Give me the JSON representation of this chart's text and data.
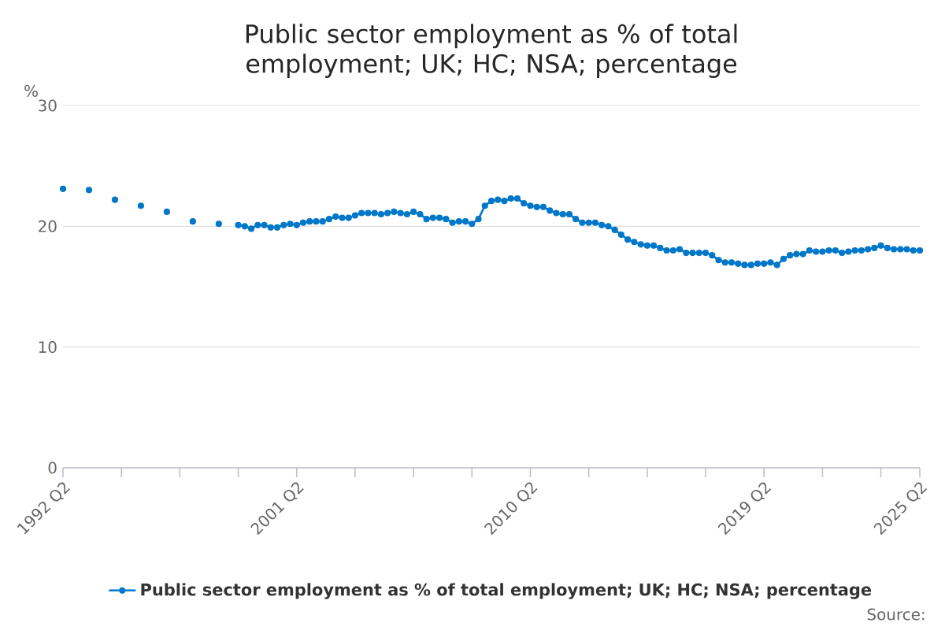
{
  "chart_data": {
    "type": "line",
    "title": "Public sector employment as % of total employment; UK; HC; NSA; percentage",
    "ylabel": "%",
    "categories": [
      "1992 Q2",
      null,
      null,
      null,
      null,
      null,
      null,
      null,
      null,
      null,
      null,
      null,
      null,
      null,
      null,
      null,
      null,
      null,
      null,
      null,
      null,
      null,
      null,
      null,
      null,
      null,
      null,
      null,
      null,
      null,
      null,
      null,
      null,
      null,
      null,
      null,
      "2001 Q2",
      null,
      null,
      null,
      null,
      null,
      null,
      null,
      null,
      null,
      null,
      null,
      null,
      null,
      null,
      null,
      null,
      null,
      null,
      null,
      null,
      null,
      null,
      null,
      null,
      null,
      null,
      null,
      null,
      null,
      null,
      null,
      null,
      null,
      null,
      null,
      "2010 Q2",
      null,
      null,
      null,
      null,
      null,
      null,
      null,
      null,
      null,
      null,
      null,
      null,
      null,
      null,
      null,
      null,
      null,
      null,
      null,
      null,
      null,
      null,
      null,
      null,
      null,
      null,
      null,
      null,
      null,
      null,
      null,
      null,
      null,
      null,
      null,
      "2019 Q2",
      null,
      null,
      null,
      null,
      null,
      null,
      null,
      null,
      null,
      null,
      null,
      null,
      null,
      null,
      null,
      null,
      null,
      null,
      null,
      null,
      null,
      null,
      null,
      "2025 Q2"
    ],
    "series": [
      {
        "name": "Public sector employment as % of total employment; UK; HC; NSA; percentage",
        "color": "#0077c8",
        "values": [
          23.1,
          null,
          null,
          null,
          23.0,
          null,
          null,
          null,
          22.2,
          null,
          null,
          null,
          21.7,
          null,
          null,
          null,
          21.2,
          null,
          null,
          null,
          20.4,
          null,
          null,
          null,
          20.2,
          null,
          null,
          20.1,
          20.0,
          19.8,
          20.1,
          20.1,
          19.9,
          19.9,
          20.1,
          20.2,
          20.1,
          20.3,
          20.4,
          20.4,
          20.4,
          20.6,
          20.8,
          20.7,
          20.7,
          20.9,
          21.1,
          21.1,
          21.1,
          21.0,
          21.1,
          21.2,
          21.1,
          21.0,
          21.2,
          21.0,
          20.6,
          20.7,
          20.7,
          20.6,
          20.3,
          20.4,
          20.4,
          20.2,
          20.6,
          21.7,
          22.1,
          22.2,
          22.1,
          22.3,
          22.3,
          21.9,
          21.7,
          21.6,
          21.6,
          21.3,
          21.1,
          21.0,
          21.0,
          20.6,
          20.3,
          20.3,
          20.3,
          20.1,
          20.0,
          19.7,
          19.3,
          18.9,
          18.7,
          18.5,
          18.4,
          18.4,
          18.2,
          18.0,
          18.0,
          18.1,
          17.8,
          17.8,
          17.8,
          17.8,
          17.6,
          17.2,
          17.0,
          17.0,
          16.9,
          16.8,
          16.8,
          16.9,
          16.9,
          17.0,
          16.8,
          17.3,
          17.6,
          17.7,
          17.7,
          18.0,
          17.9,
          17.9,
          18.0,
          18.0,
          17.8,
          17.9,
          18.0,
          18.0,
          18.1,
          18.2,
          18.4,
          18.2,
          18.1,
          18.1,
          18.1,
          18.0,
          18.0
        ]
      }
    ],
    "ylim": [
      0,
      30
    ],
    "yticks": [
      0,
      10,
      20,
      30
    ],
    "grid": "y",
    "legend": "bottom",
    "marker": "circle",
    "line_style": "solid",
    "annotations": [
      "Source:"
    ]
  }
}
